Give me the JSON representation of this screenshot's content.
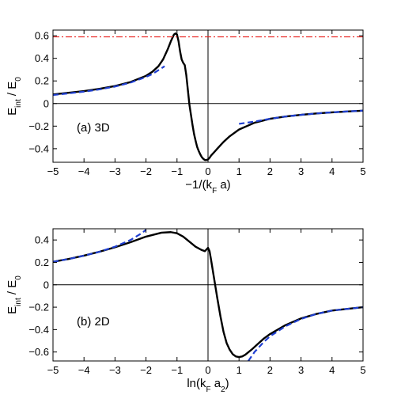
{
  "chart_data": [
    {
      "type": "line",
      "panel_label": "(a) 3D",
      "xlabel": "−1/(k_F a)",
      "ylabel": "E_int / E_0",
      "xlim": [
        -5,
        5
      ],
      "ylim": [
        -0.52,
        0.65
      ],
      "xticks": [
        -5,
        -4,
        -3,
        -2,
        -1,
        0,
        1,
        2,
        3,
        4,
        5
      ],
      "xtick_labels": [
        "−5",
        "−4",
        "−3",
        "−2",
        "−1",
        "0",
        "1",
        "2",
        "3",
        "4",
        "5"
      ],
      "yticks": [
        -0.4,
        -0.2,
        0,
        0.2,
        0.4,
        0.6
      ],
      "ytick_labels": [
        "−0.4",
        "−0.2",
        "0",
        "0.2",
        "0.4",
        "0.6"
      ],
      "grid": false,
      "colors": {
        "main": "#000000",
        "asymptote": "#1f3fd1",
        "reference": "#e8211e"
      },
      "series": [
        {
          "style": "solid",
          "x": [
            -5,
            -4.5,
            -4,
            -3.5,
            -3,
            -2.5,
            -2,
            -1.8,
            -1.6,
            -1.45,
            -1.3,
            -1.2,
            -1.1,
            -1.05,
            -1.0,
            -0.95,
            -0.9,
            -0.85,
            -0.8,
            -0.75,
            -0.7,
            -0.65,
            -0.6,
            -0.55,
            -0.5,
            -0.45,
            -0.4,
            -0.35,
            -0.3,
            -0.25,
            -0.2,
            -0.15,
            -0.1,
            -0.05,
            0,
            0.05,
            0.1,
            0.2,
            0.3,
            0.5,
            0.7,
            1.0,
            1.5,
            2,
            2.5,
            3,
            3.5,
            4,
            4.5,
            5
          ],
          "y": [
            0.08,
            0.095,
            0.11,
            0.13,
            0.155,
            0.19,
            0.245,
            0.28,
            0.33,
            0.39,
            0.48,
            0.55,
            0.61,
            0.62,
            0.61,
            0.55,
            0.46,
            0.39,
            0.36,
            0.34,
            0.25,
            0.12,
            -0.01,
            -0.1,
            -0.19,
            -0.27,
            -0.33,
            -0.385,
            -0.42,
            -0.45,
            -0.475,
            -0.49,
            -0.5,
            -0.5,
            -0.495,
            -0.48,
            -0.46,
            -0.43,
            -0.4,
            -0.34,
            -0.29,
            -0.23,
            -0.17,
            -0.135,
            -0.115,
            -0.1,
            -0.088,
            -0.078,
            -0.07,
            -0.063
          ]
        },
        {
          "style": "dashed",
          "x": [
            -5,
            -4.5,
            -4,
            -3.5,
            -3,
            -2.5,
            -2,
            -1.8,
            -1.6,
            -1.4
          ],
          "y": [
            0.075,
            0.09,
            0.105,
            0.125,
            0.15,
            0.185,
            0.235,
            0.26,
            0.295,
            0.33
          ]
        },
        {
          "style": "dashed",
          "x": [
            1.0,
            1.5,
            2,
            2.5,
            3,
            3.5,
            4,
            4.5,
            5
          ],
          "y": [
            -0.18,
            -0.16,
            -0.135,
            -0.115,
            -0.1,
            -0.088,
            -0.078,
            -0.07,
            -0.063
          ]
        },
        {
          "style": "dashdot",
          "x": [
            -5,
            5
          ],
          "y": [
            0.59,
            0.59
          ]
        }
      ]
    },
    {
      "type": "line",
      "panel_label": "(b) 2D",
      "xlabel": "ln(k_F a_2)",
      "ylabel": "E_int / E_0",
      "xlim": [
        -5,
        5
      ],
      "ylim": [
        -0.68,
        0.5
      ],
      "xticks": [
        -5,
        -4,
        -3,
        -2,
        -1,
        0,
        1,
        2,
        3,
        4,
        5
      ],
      "xtick_labels": [
        "−5",
        "−4",
        "−3",
        "−2",
        "−1",
        "0",
        "1",
        "2",
        "3",
        "4",
        "5"
      ],
      "yticks": [
        -0.6,
        -0.4,
        -0.2,
        0,
        0.2,
        0.4
      ],
      "ytick_labels": [
        "−0.6",
        "−0.4",
        "−0.2",
        "0",
        "0.2",
        "0.4"
      ],
      "grid": false,
      "colors": {
        "main": "#000000",
        "asymptote": "#1f3fd1"
      },
      "series": [
        {
          "style": "solid",
          "x": [
            -5,
            -4.5,
            -4,
            -3.5,
            -3,
            -2.5,
            -2,
            -1.5,
            -1.2,
            -1.0,
            -0.8,
            -0.6,
            -0.4,
            -0.2,
            -0.1,
            0,
            0.05,
            0.1,
            0.2,
            0.3,
            0.4,
            0.5,
            0.6,
            0.7,
            0.8,
            0.9,
            1.0,
            1.1,
            1.2,
            1.4,
            1.6,
            1.8,
            2,
            2.5,
            3,
            3.5,
            4,
            4.5,
            5
          ],
          "y": [
            0.205,
            0.23,
            0.26,
            0.295,
            0.335,
            0.38,
            0.43,
            0.465,
            0.47,
            0.46,
            0.43,
            0.385,
            0.34,
            0.31,
            0.3,
            0.33,
            0.3,
            0.22,
            0.05,
            -0.12,
            -0.28,
            -0.42,
            -0.52,
            -0.58,
            -0.62,
            -0.64,
            -0.645,
            -0.64,
            -0.625,
            -0.58,
            -0.53,
            -0.48,
            -0.44,
            -0.36,
            -0.3,
            -0.26,
            -0.23,
            -0.215,
            -0.2
          ]
        },
        {
          "style": "dashed",
          "x": [
            -5,
            -4.5,
            -4,
            -3.5,
            -3,
            -2.5,
            -2.2,
            -2.0
          ],
          "y": [
            0.205,
            0.23,
            0.26,
            0.295,
            0.34,
            0.4,
            0.45,
            0.49
          ]
        },
        {
          "style": "dashed",
          "x": [
            1.3,
            1.5,
            1.8,
            2,
            2.5,
            3,
            3.5,
            4,
            4.5,
            5
          ],
          "y": [
            -0.68,
            -0.6,
            -0.51,
            -0.46,
            -0.37,
            -0.305,
            -0.26,
            -0.23,
            -0.215,
            -0.2
          ]
        }
      ]
    }
  ]
}
